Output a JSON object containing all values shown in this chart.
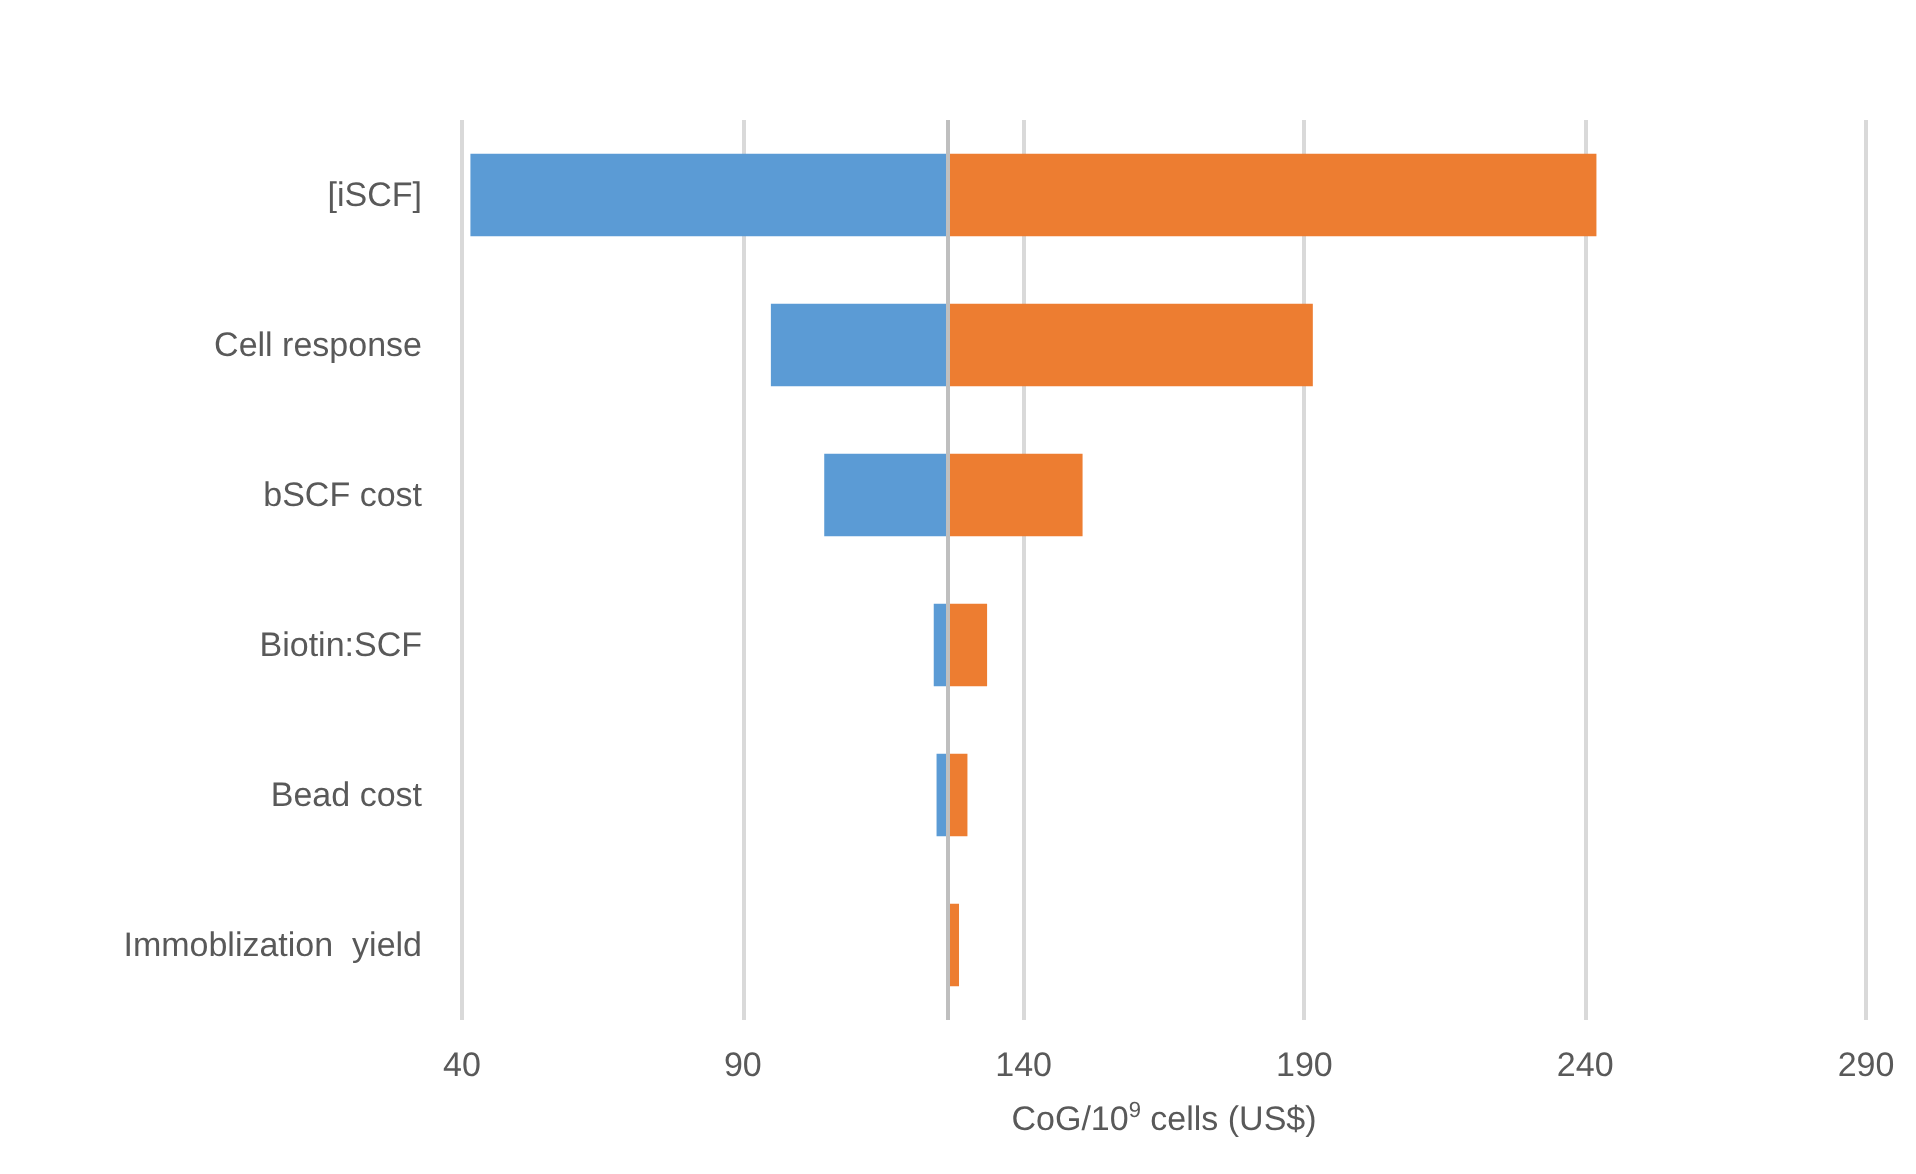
{
  "chart_data": {
    "type": "bar",
    "orientation": "horizontal",
    "xlabel": "CoG/10$^{9}$ cells (US$)",
    "categories": [
      "[iSCF]",
      "Cell response",
      "bSCF cost",
      "Biotin:SCF",
      "Bead cost",
      "Immoblization  yield"
    ],
    "series": [
      {
        "color": "#5b9bd5",
        "base": [
          41.5,
          95,
          104.5,
          124,
          124.5,
          null
        ],
        "values": [
          85,
          31.5,
          22,
          2.5,
          2,
          null
        ]
      },
      {
        "color": "#ed7d31",
        "base": [
          126.5,
          126.5,
          126.5,
          126.5,
          126.5,
          126.5
        ],
        "values": [
          115.5,
          65,
          24,
          7,
          3.5,
          2
        ]
      }
    ],
    "xlim": [
      40,
      290
    ],
    "xticks": [
      40,
      90,
      140,
      190,
      240,
      290
    ],
    "grid": "x",
    "ref_lines": [
      {
        "axis": "x",
        "value": 126.5,
        "color": "#bfbfbf"
      }
    ]
  }
}
